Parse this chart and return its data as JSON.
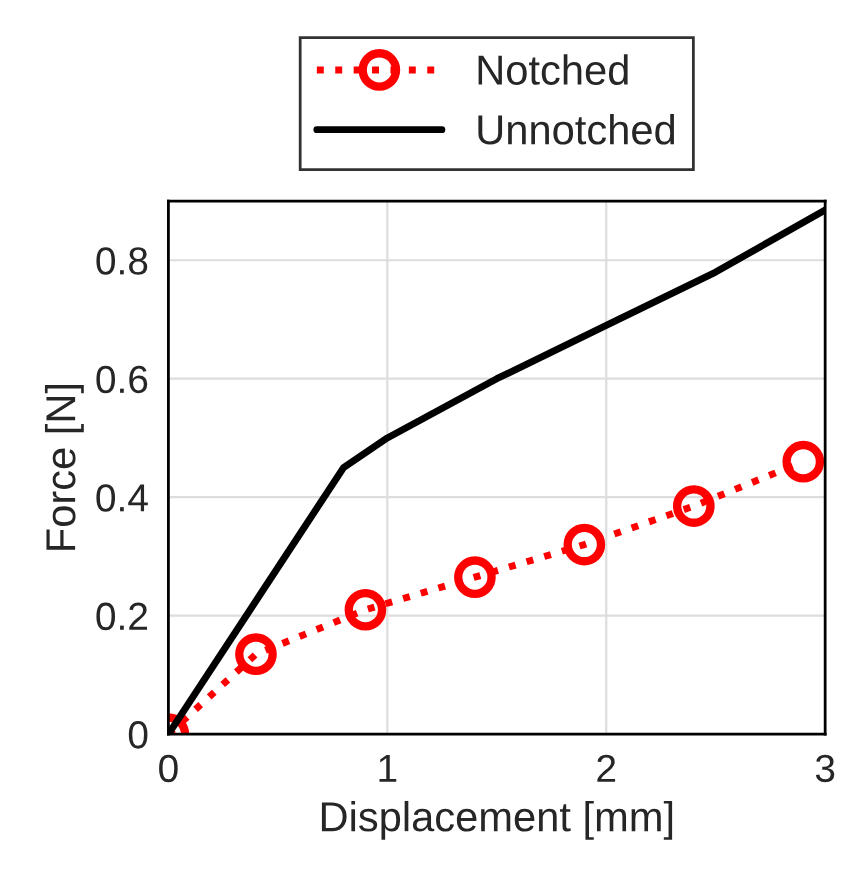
{
  "chart_data": {
    "type": "line",
    "xlabel": "Displacement [mm]",
    "ylabel": "Force [N]",
    "xlim": [
      0,
      3
    ],
    "ylim": [
      0,
      0.9
    ],
    "xticks": [
      0,
      1,
      2,
      3
    ],
    "yticks": [
      0,
      0.2,
      0.4,
      0.6,
      0.8
    ],
    "grid": true,
    "legend": "top",
    "series": [
      {
        "name": "Notched",
        "color": "#ff0000",
        "marker": "circle",
        "line_style": "dotted",
        "x": [
          0,
          0.4,
          0.9,
          1.4,
          1.9,
          2.4,
          2.9
        ],
        "values": [
          0,
          0.135,
          0.21,
          0.265,
          0.32,
          0.385,
          0.46
        ]
      },
      {
        "name": "Unnotched",
        "color": "#000000",
        "marker": "none",
        "line_style": "solid",
        "x": [
          0,
          0.8,
          1.0,
          1.5,
          2.0,
          2.5,
          3.0
        ],
        "values": [
          0,
          0.45,
          0.5,
          0.6,
          0.69,
          0.78,
          0.885
        ]
      }
    ]
  }
}
